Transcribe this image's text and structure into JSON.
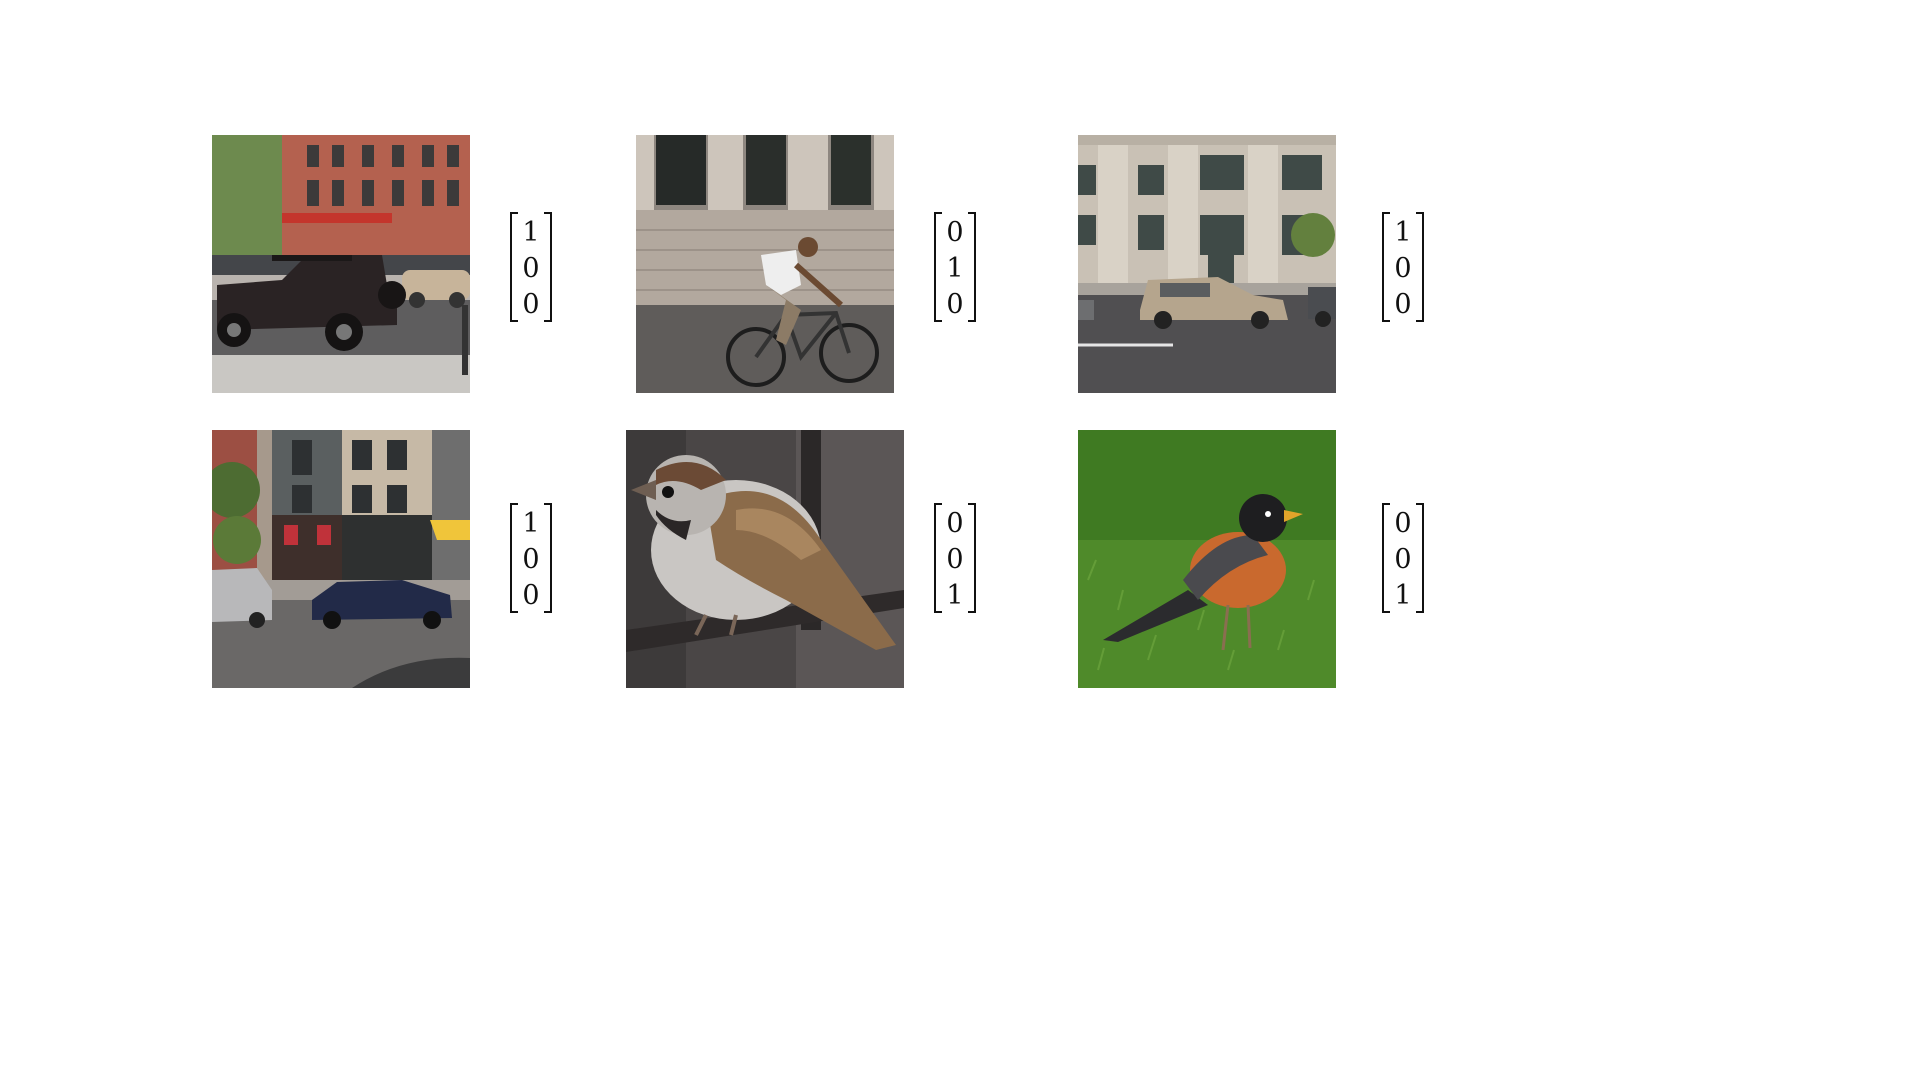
{
  "rows": [
    {
      "items": [
        {
          "image": "jeep-street-photo",
          "label": [
            "1",
            "0",
            "0"
          ]
        },
        {
          "image": "cyclist-photo",
          "label": [
            "0",
            "1",
            "0"
          ]
        },
        {
          "image": "minivan-building-photo",
          "label": [
            "1",
            "0",
            "0"
          ]
        }
      ]
    },
    {
      "items": [
        {
          "image": "street-cars-photo",
          "label": [
            "1",
            "0",
            "0"
          ]
        },
        {
          "image": "sparrow-photo",
          "label": [
            "0",
            "0",
            "1"
          ]
        },
        {
          "image": "robin-photo",
          "label": [
            "0",
            "0",
            "1"
          ]
        }
      ]
    }
  ],
  "colors": {
    "bracket": "#111111",
    "background": "#ffffff"
  }
}
